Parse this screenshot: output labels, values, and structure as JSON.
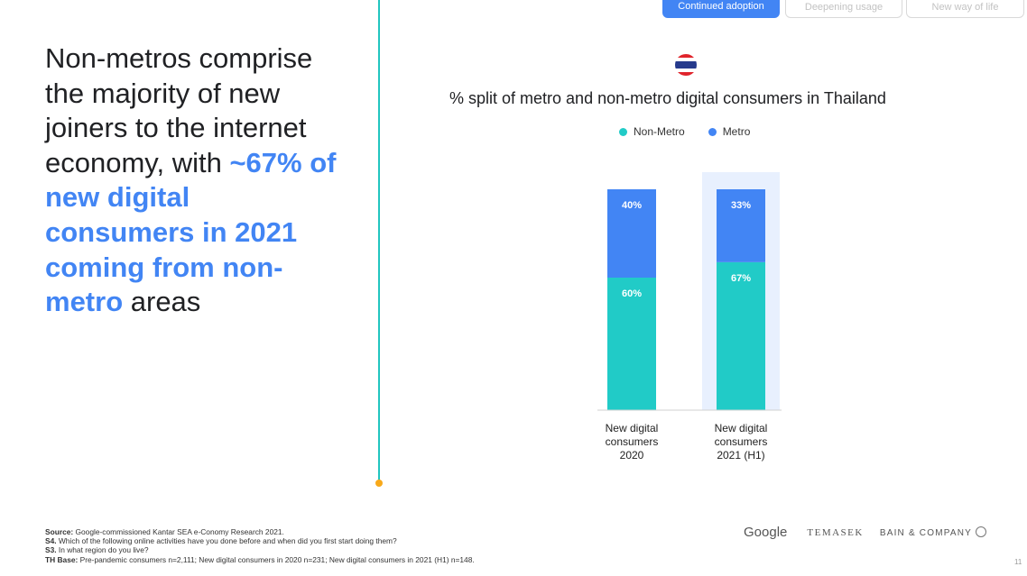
{
  "tabs": [
    {
      "label": "Continued adoption",
      "active": true
    },
    {
      "label": "Deepening usage",
      "active": false
    },
    {
      "label": "New way of life",
      "active": false
    }
  ],
  "headline": {
    "part1": "Non-metros comprise the majority of new joiners to the internet economy, with ",
    "highlight": "~67% of new digital consumers in 2021 coming from non-metro",
    "part2": " areas"
  },
  "flag": {
    "icon": "thailand-flag-icon",
    "colors": [
      "#e0232b",
      "#ffffff",
      "#263a8c",
      "#ffffff",
      "#e0232b"
    ]
  },
  "chart_data": {
    "type": "bar",
    "stacked": true,
    "title": "% split of metro and non-metro digital consumers in Thailand",
    "categories": [
      [
        "New digital",
        "consumers",
        "2020"
      ],
      [
        "New digital",
        "consumers",
        "2021 (H1)"
      ]
    ],
    "series": [
      {
        "name": "Non-Metro",
        "color": "#21cbc7",
        "values": [
          60,
          67
        ],
        "labels": [
          "60%",
          "67%"
        ]
      },
      {
        "name": "Metro",
        "color": "#4285f4",
        "values": [
          40,
          33
        ],
        "labels": [
          "40%",
          "33%"
        ]
      }
    ],
    "ylim": [
      0,
      100
    ],
    "highlight_category": 1,
    "highlight_color": "#e8f0fe",
    "legend": "top"
  },
  "footer": [
    {
      "label": "Source:",
      "text": " Google-commissioned Kantar SEA e-Conomy Research 2021."
    },
    {
      "label": "S4.",
      "text": " Which of the following online activities have you done before and when did you first start doing them?"
    },
    {
      "label": "S3.",
      "text": " In what region do you live?"
    },
    {
      "label": "TH Base:",
      "text": " Pre-pandemic consumers n=2,111; New digital consumers in 2020 n=231; New digital consumers in 2021 (H1) n=148."
    }
  ],
  "logos": {
    "google": "Google",
    "temasek": "TEMASEK",
    "bain": "BAIN & COMPANY"
  },
  "page_number": "11"
}
